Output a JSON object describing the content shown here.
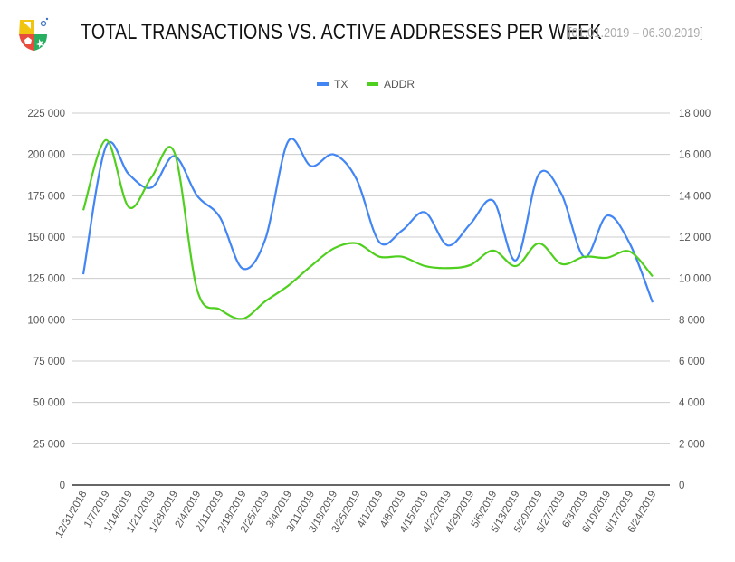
{
  "header": {
    "title": "TOTAL TRANSACTIONS VS. ACTIVE ADDRESSES PER WEEK",
    "date_range": "[01.01.2019 – 06.30.2019]"
  },
  "chart_data": {
    "type": "line",
    "title": "TOTAL TRANSACTIONS VS. ACTIVE ADDRESSES PER WEEK",
    "legend_position": "top",
    "grid": true,
    "categories": [
      "12/31/2018",
      "1/7/2019",
      "1/14/2019",
      "1/21/2019",
      "1/28/2019",
      "2/4/2019",
      "2/11/2019",
      "2/18/2019",
      "2/25/2019",
      "3/4/2019",
      "3/11/2019",
      "3/18/2019",
      "3/25/2019",
      "4/1/2019",
      "4/8/2019",
      "4/15/2019",
      "4/22/2019",
      "4/29/2019",
      "5/6/2019",
      "5/13/2019",
      "5/20/2019",
      "5/27/2019",
      "6/3/2019",
      "6/10/2019",
      "6/17/2019",
      "6/24/2019"
    ],
    "series": [
      {
        "name": "TX",
        "axis": "left",
        "color": "#4285f4",
        "values": [
          127500,
          205000,
          188000,
          180000,
          199000,
          175000,
          162000,
          131000,
          149000,
          208000,
          193000,
          200000,
          185000,
          147000,
          154000,
          165000,
          145000,
          158000,
          172000,
          136000,
          188000,
          176000,
          138000,
          163000,
          146000,
          110500
        ]
      },
      {
        "name": "ADDR",
        "axis": "right",
        "color": "#4fcf1e",
        "values": [
          13300,
          16700,
          13450,
          14900,
          16100,
          9450,
          8500,
          8050,
          8900,
          9650,
          10600,
          11450,
          11700,
          11050,
          11050,
          10600,
          10500,
          10650,
          11350,
          10600,
          11700,
          10700,
          11050,
          11000,
          11300,
          10100
        ]
      }
    ],
    "y_left": {
      "range": [
        0,
        225000
      ],
      "ticks": [
        "0",
        "25 000",
        "50 000",
        "75 000",
        "100 000",
        "125 000",
        "150 000",
        "175 000",
        "200 000",
        "225 000"
      ]
    },
    "y_right": {
      "range": [
        0,
        18000
      ],
      "ticks": [
        "0",
        "2 000",
        "4 000",
        "6 000",
        "8 000",
        "10 000",
        "12 000",
        "14 000",
        "16 000",
        "18 000"
      ]
    }
  }
}
